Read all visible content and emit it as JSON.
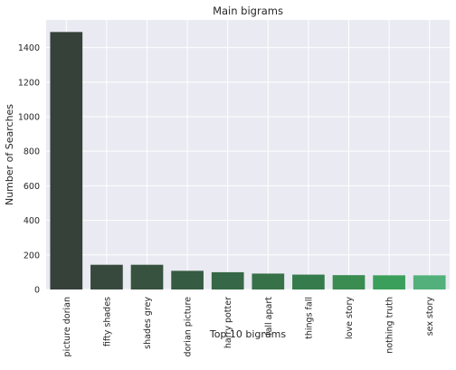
{
  "chart_data": {
    "type": "bar",
    "title": "Main bigrams",
    "xlabel": "Top 10 bigrams",
    "ylabel": "Number of Searches",
    "categories": [
      "picture dorian",
      "fifty shades",
      "shades grey",
      "dorian picture",
      "harry potter",
      "fall apart",
      "things fall",
      "love story",
      "nothing truth",
      "sex story"
    ],
    "values": [
      1490,
      143,
      143,
      108,
      100,
      92,
      86,
      83,
      82,
      82
    ],
    "ylim": [
      0,
      1560
    ],
    "yticks": [
      0,
      200,
      400,
      600,
      800,
      1000,
      1200,
      1400
    ],
    "grid": true,
    "background": "#eaeaf2",
    "bar_colors": [
      "#36413a",
      "#37493d",
      "#37523f",
      "#365b43",
      "#366746",
      "#377148",
      "#357b4b",
      "#3a8c51",
      "#3a9f5a",
      "#53b07a"
    ]
  }
}
